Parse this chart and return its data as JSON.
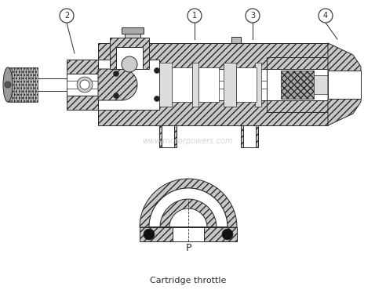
{
  "title": "Cartridge throttle",
  "watermark": "www.motorpowers.com",
  "labels": [
    "1",
    "2",
    "3",
    "4"
  ],
  "P_label": "P",
  "bg_color": "#ffffff",
  "line_color": "#2a2a2a",
  "hatch_fc": "#c8c8c8",
  "white": "#ffffff",
  "dark": "#555555"
}
